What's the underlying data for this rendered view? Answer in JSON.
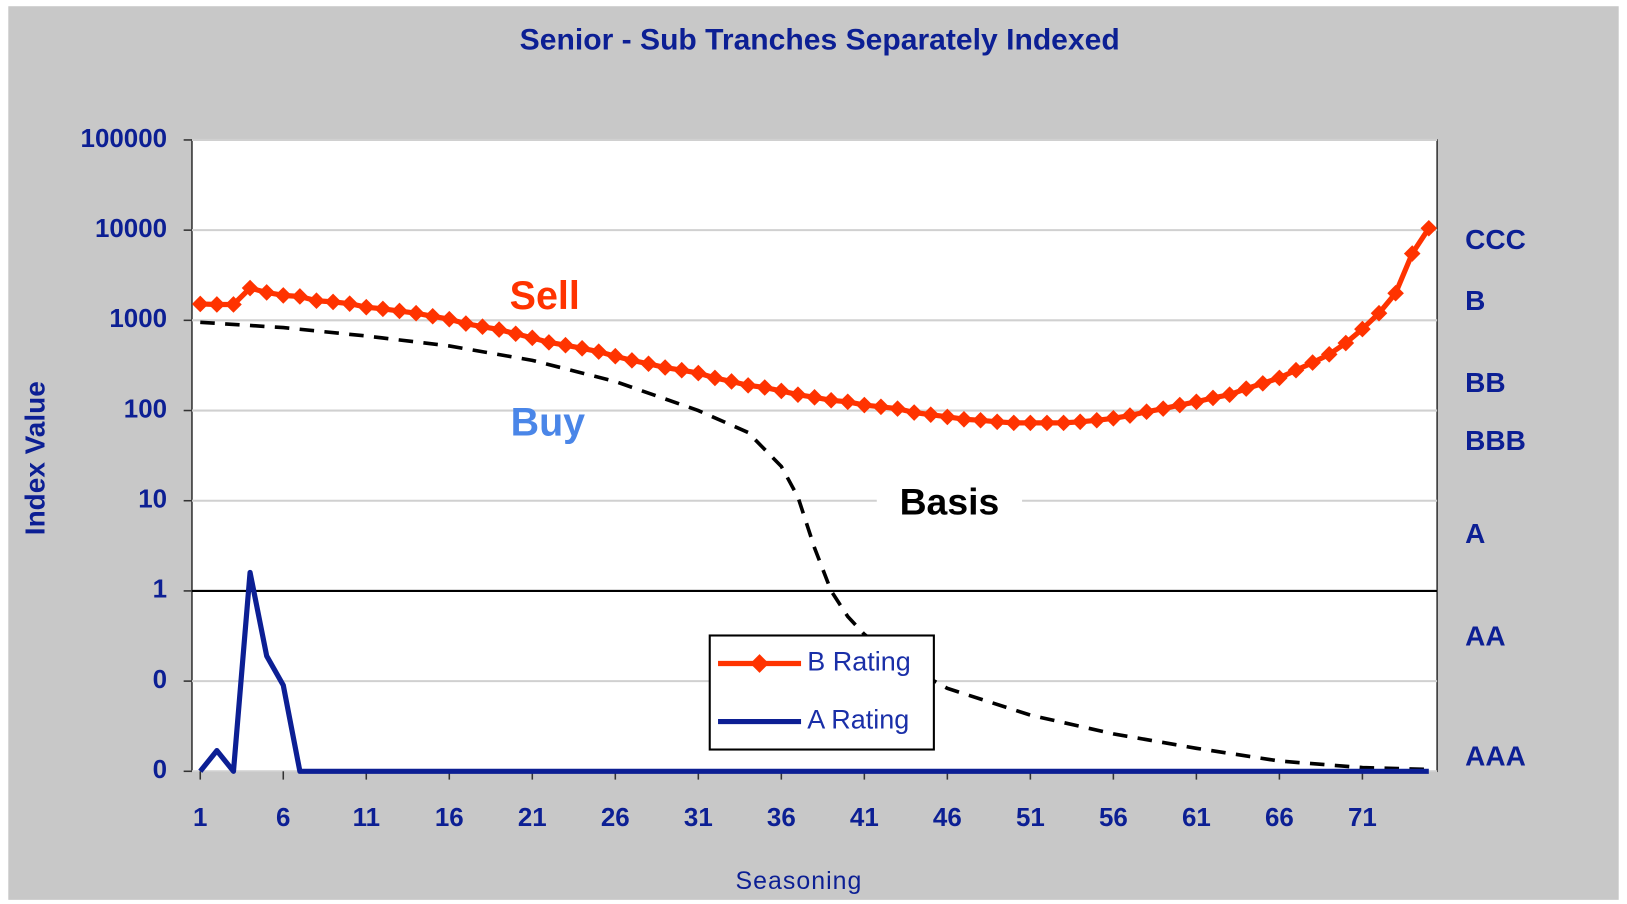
{
  "chart_data": {
    "type": "line",
    "title": "Senior - Sub Tranches Separately Indexed",
    "x_label": "Seasoning",
    "y_label": "Index Value",
    "yscale": "log",
    "grid": true,
    "axis_cross": 1,
    "xlim": [
      0.5,
      75.5
    ],
    "xticks": [
      1,
      6,
      11,
      16,
      21,
      26,
      31,
      36,
      41,
      46,
      51,
      56,
      61,
      66,
      71
    ],
    "ylim": [
      0.01,
      100000
    ],
    "yticks": [
      {
        "value": 0.01,
        "label": "0"
      },
      {
        "value": 0.1,
        "label": "0"
      },
      1,
      10,
      100,
      1000,
      10000,
      100000
    ],
    "x": [
      1,
      2,
      3,
      4,
      5,
      6,
      7,
      8,
      9,
      10,
      11,
      12,
      13,
      14,
      15,
      16,
      17,
      18,
      19,
      20,
      21,
      22,
      23,
      24,
      25,
      26,
      27,
      28,
      29,
      30,
      31,
      32,
      33,
      34,
      35,
      36,
      37,
      38,
      39,
      40,
      41,
      42,
      43,
      44,
      45,
      46,
      47,
      48,
      49,
      50,
      51,
      52,
      53,
      54,
      55,
      56,
      57,
      58,
      59,
      60,
      61,
      62,
      63,
      64,
      65,
      66,
      67,
      68,
      69,
      70,
      71,
      72,
      73,
      74,
      75
    ],
    "series": [
      {
        "name": "B Rating",
        "color": "#ff3300",
        "marker": "diamond",
        "values": [
          1520,
          1500,
          1500,
          2280,
          2040,
          1890,
          1840,
          1650,
          1600,
          1530,
          1400,
          1340,
          1270,
          1200,
          1110,
          1030,
          920,
          850,
          790,
          710,
          640,
          570,
          530,
          490,
          450,
          400,
          360,
          330,
          300,
          280,
          260,
          230,
          210,
          190,
          180,
          165,
          150,
          140,
          130,
          125,
          115,
          110,
          105,
          95,
          90,
          85,
          80,
          78,
          75,
          73,
          73,
          73,
          73,
          75,
          78,
          82,
          88,
          97,
          105,
          115,
          125,
          138,
          150,
          175,
          200,
          230,
          280,
          340,
          420,
          560,
          800,
          1200,
          2000,
          5500,
          10500
        ]
      },
      {
        "name": "A Rating",
        "color": "#0c1f94",
        "marker": "none",
        "values": [
          0.01,
          0.017,
          0.01,
          1.6,
          0.19,
          0.09,
          0.01,
          0.01,
          0.01,
          0.01,
          0.01,
          0.01,
          0.01,
          0.01,
          0.01,
          0.01,
          0.01,
          0.01,
          0.01,
          0.01,
          0.01,
          0.01,
          0.01,
          0.01,
          0.01,
          0.01,
          0.01,
          0.01,
          0.01,
          0.01,
          0.01,
          0.01,
          0.01,
          0.01,
          0.01,
          0.01,
          0.01,
          0.01,
          0.01,
          0.01,
          0.01,
          0.01,
          0.01,
          0.01,
          0.01,
          0.01,
          0.01,
          0.01,
          0.01,
          0.01,
          0.01,
          0.01,
          0.01,
          0.01,
          0.01,
          0.01,
          0.01,
          0.01,
          0.01,
          0.01,
          0.01,
          0.01,
          0.01,
          0.01,
          0.01,
          0.01,
          0.01,
          0.01,
          0.01,
          0.01,
          0.01,
          0.01,
          0.01,
          0.01,
          0.01
        ]
      }
    ],
    "basis": {
      "color": "#000000",
      "x": [
        1,
        6,
        11,
        16,
        21,
        26,
        31,
        34,
        36,
        37,
        38,
        39,
        40,
        41,
        43,
        46,
        51,
        56,
        61,
        66,
        71,
        75
      ],
      "values": [
        950,
        830,
        670,
        520,
        360,
        210,
        100,
        57,
        24,
        11,
        3,
        1,
        0.52,
        0.33,
        0.17,
        0.083,
        0.042,
        0.026,
        0.018,
        0.013,
        0.011,
        0.0105
      ]
    },
    "annotations": [
      {
        "text": "Sell",
        "color": "#ff3300"
      },
      {
        "text": "Buy",
        "color": "#4a86e8"
      },
      {
        "text": "Basis",
        "color": "#000000"
      }
    ],
    "rating_labels": [
      {
        "value": 7500,
        "label": "CCC"
      },
      {
        "value": 1570,
        "label": "B"
      },
      {
        "value": 194,
        "label": "BB"
      },
      {
        "value": 44,
        "label": "BBB"
      },
      {
        "value": 4.1,
        "label": "A"
      },
      {
        "value": 0.3,
        "label": "AA"
      },
      {
        "value": 0.014,
        "label": "AAA"
      }
    ]
  }
}
